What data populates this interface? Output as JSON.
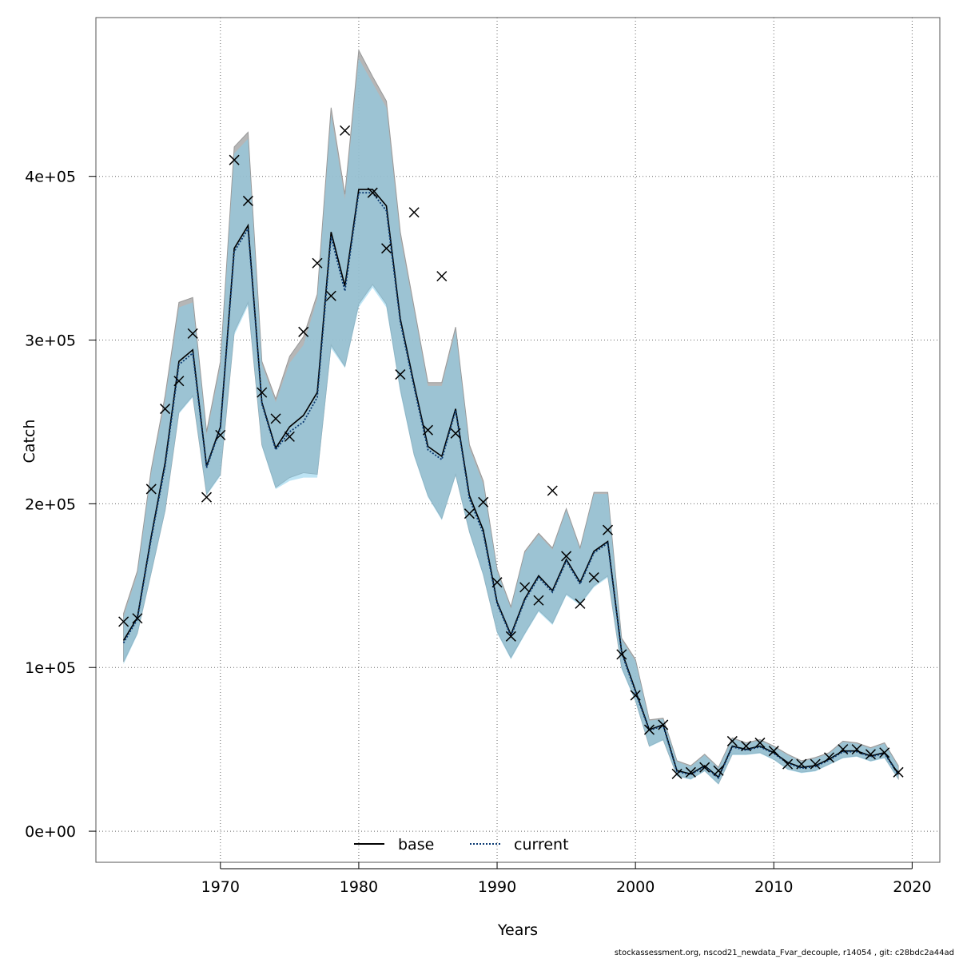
{
  "chart_data": {
    "type": "line",
    "title": "",
    "xlabel": "Years",
    "ylabel": "Catch",
    "xlim": [
      1961,
      2022
    ],
    "ylim": [
      -19000,
      497000
    ],
    "x_ticks": [
      1970,
      1980,
      1990,
      2000,
      2010,
      2020
    ],
    "y_ticks": [
      {
        "value": 0,
        "label": "0e+00"
      },
      {
        "value": 100000,
        "label": "1e+05"
      },
      {
        "value": 200000,
        "label": "2e+05"
      },
      {
        "value": 300000,
        "label": "3e+05"
      },
      {
        "value": 400000,
        "label": "4e+05"
      }
    ],
    "grid": true,
    "legend": {
      "position": "bottom-center",
      "entries": [
        "base",
        "current"
      ]
    },
    "colors": {
      "base_line": "#000000",
      "current_line": "#0b3a72",
      "base_band": "#a9a9a9",
      "current_band": "#87ceeb",
      "obs_marker": "#000000"
    },
    "years": [
      1963,
      1964,
      1965,
      1966,
      1967,
      1968,
      1969,
      1970,
      1971,
      1972,
      1973,
      1974,
      1975,
      1976,
      1977,
      1978,
      1979,
      1980,
      1981,
      1982,
      1983,
      1984,
      1985,
      1986,
      1987,
      1988,
      1989,
      1990,
      1991,
      1992,
      1993,
      1994,
      1995,
      1996,
      1997,
      1998,
      1999,
      2000,
      2001,
      2002,
      2003,
      2004,
      2005,
      2006,
      2007,
      2008,
      2009,
      2010,
      2011,
      2012,
      2013,
      2014,
      2015,
      2016,
      2017,
      2018,
      2019
    ],
    "series": [
      {
        "name": "base",
        "values": [
          116500,
          130500,
          180000,
          225000,
          287000,
          294000,
          223000,
          247000,
          356000,
          370000,
          262000,
          234000,
          247000,
          254000,
          268000,
          366000,
          333000,
          392000,
          392000,
          382000,
          313000,
          273000,
          235000,
          229000,
          258000,
          205000,
          184000,
          140000,
          120000,
          142000,
          156000,
          147000,
          166000,
          152000,
          171000,
          177000,
          110000,
          86000,
          62000,
          65000,
          37000,
          35000,
          40000,
          33000,
          52000,
          50000,
          52000,
          48000,
          42000,
          39000,
          40000,
          44000,
          49000,
          49000,
          46000,
          48000,
          35000
        ],
        "lower": [
          103500,
          121000,
          158000,
          196000,
          256000,
          266000,
          206000,
          218000,
          305000,
          323000,
          236000,
          210000,
          216000,
          219000,
          218000,
          297000,
          284000,
          322000,
          334000,
          322000,
          270000,
          230000,
          205000,
          191000,
          218000,
          183000,
          157000,
          122000,
          106000,
          121000,
          135000,
          127000,
          145000,
          139000,
          150000,
          156000,
          100000,
          80000,
          52000,
          56000,
          34000,
          32000,
          37000,
          29000,
          47000,
          47000,
          48000,
          44000,
          38000,
          36000,
          37000,
          41000,
          45000,
          46000,
          43000,
          45000,
          32000
        ],
        "upper": [
          133000,
          159000,
          221000,
          266000,
          323000,
          326000,
          244000,
          287000,
          418000,
          427000,
          287000,
          264000,
          290000,
          302000,
          328000,
          442000,
          389000,
          477000,
          461000,
          446000,
          366000,
          320000,
          274000,
          274000,
          308000,
          236000,
          214000,
          160000,
          137000,
          171000,
          182000,
          173000,
          197000,
          173000,
          207000,
          207000,
          118000,
          105000,
          68000,
          69000,
          43000,
          40000,
          47000,
          39000,
          57000,
          54000,
          56000,
          52000,
          47000,
          43000,
          45000,
          48000,
          55000,
          54000,
          51000,
          54000,
          40000
        ]
      },
      {
        "name": "current",
        "values": [
          115000,
          129500,
          178500,
          223000,
          285000,
          292000,
          222000,
          246000,
          354000,
          368000,
          261000,
          233000,
          244000,
          250000,
          265000,
          363000,
          330000,
          390000,
          390000,
          379000,
          311000,
          271000,
          233000,
          227000,
          257000,
          203000,
          182000,
          139000,
          119000,
          141000,
          155000,
          146000,
          165000,
          151000,
          170000,
          176000,
          109000,
          85000,
          61500,
          64500,
          36500,
          34500,
          39500,
          32500,
          51500,
          49500,
          51500,
          47500,
          41500,
          38500,
          39500,
          43500,
          48500,
          48500,
          45500,
          47500,
          34500
        ],
        "lower": [
          102000,
          120000,
          157000,
          195000,
          255000,
          265000,
          205000,
          217000,
          303000,
          321000,
          235000,
          209000,
          214000,
          216000,
          216000,
          295000,
          283000,
          320000,
          332000,
          320000,
          268000,
          229000,
          204000,
          190000,
          217000,
          182000,
          156000,
          121000,
          105000,
          120000,
          134000,
          126000,
          144000,
          138000,
          149000,
          155000,
          99000,
          79000,
          51500,
          55500,
          33500,
          31500,
          36500,
          28500,
          46500,
          46500,
          47500,
          43500,
          37500,
          35500,
          36500,
          40500,
          44500,
          45500,
          42500,
          44500,
          31500
        ],
        "upper": [
          131000,
          157000,
          219000,
          263000,
          320000,
          323000,
          242000,
          284000,
          414000,
          423000,
          285000,
          262000,
          286000,
          297000,
          325000,
          438000,
          386000,
          472000,
          457000,
          442000,
          363000,
          318000,
          272000,
          272000,
          306000,
          234000,
          212000,
          159000,
          136000,
          170000,
          181000,
          172000,
          196000,
          172000,
          206000,
          206000,
          117000,
          104000,
          67500,
          68500,
          42500,
          39500,
          46500,
          38500,
          56500,
          53500,
          55500,
          51500,
          46500,
          42500,
          44500,
          47500,
          54500,
          53500,
          50500,
          53500,
          39500
        ]
      }
    ],
    "observed": {
      "name": "observations",
      "values": [
        128000,
        130000,
        209000,
        258000,
        275000,
        304000,
        204000,
        242000,
        410000,
        385000,
        268000,
        252000,
        241000,
        305000,
        347000,
        327000,
        428000,
        null,
        390000,
        356000,
        279000,
        378000,
        245000,
        339000,
        243000,
        194000,
        201000,
        152000,
        119000,
        149000,
        141000,
        208000,
        168000,
        139000,
        155000,
        184000,
        108000,
        83000,
        62000,
        65000,
        35000,
        36000,
        39000,
        37000,
        55000,
        52000,
        54000,
        49000,
        41000,
        41000,
        41000,
        45000,
        50000,
        50000,
        47000,
        48000,
        36000
      ]
    }
  },
  "footer": "stockassessment.org, nscod21_newdata_Fvar_decouple, r14054 , git: c28bdc2a44ad"
}
